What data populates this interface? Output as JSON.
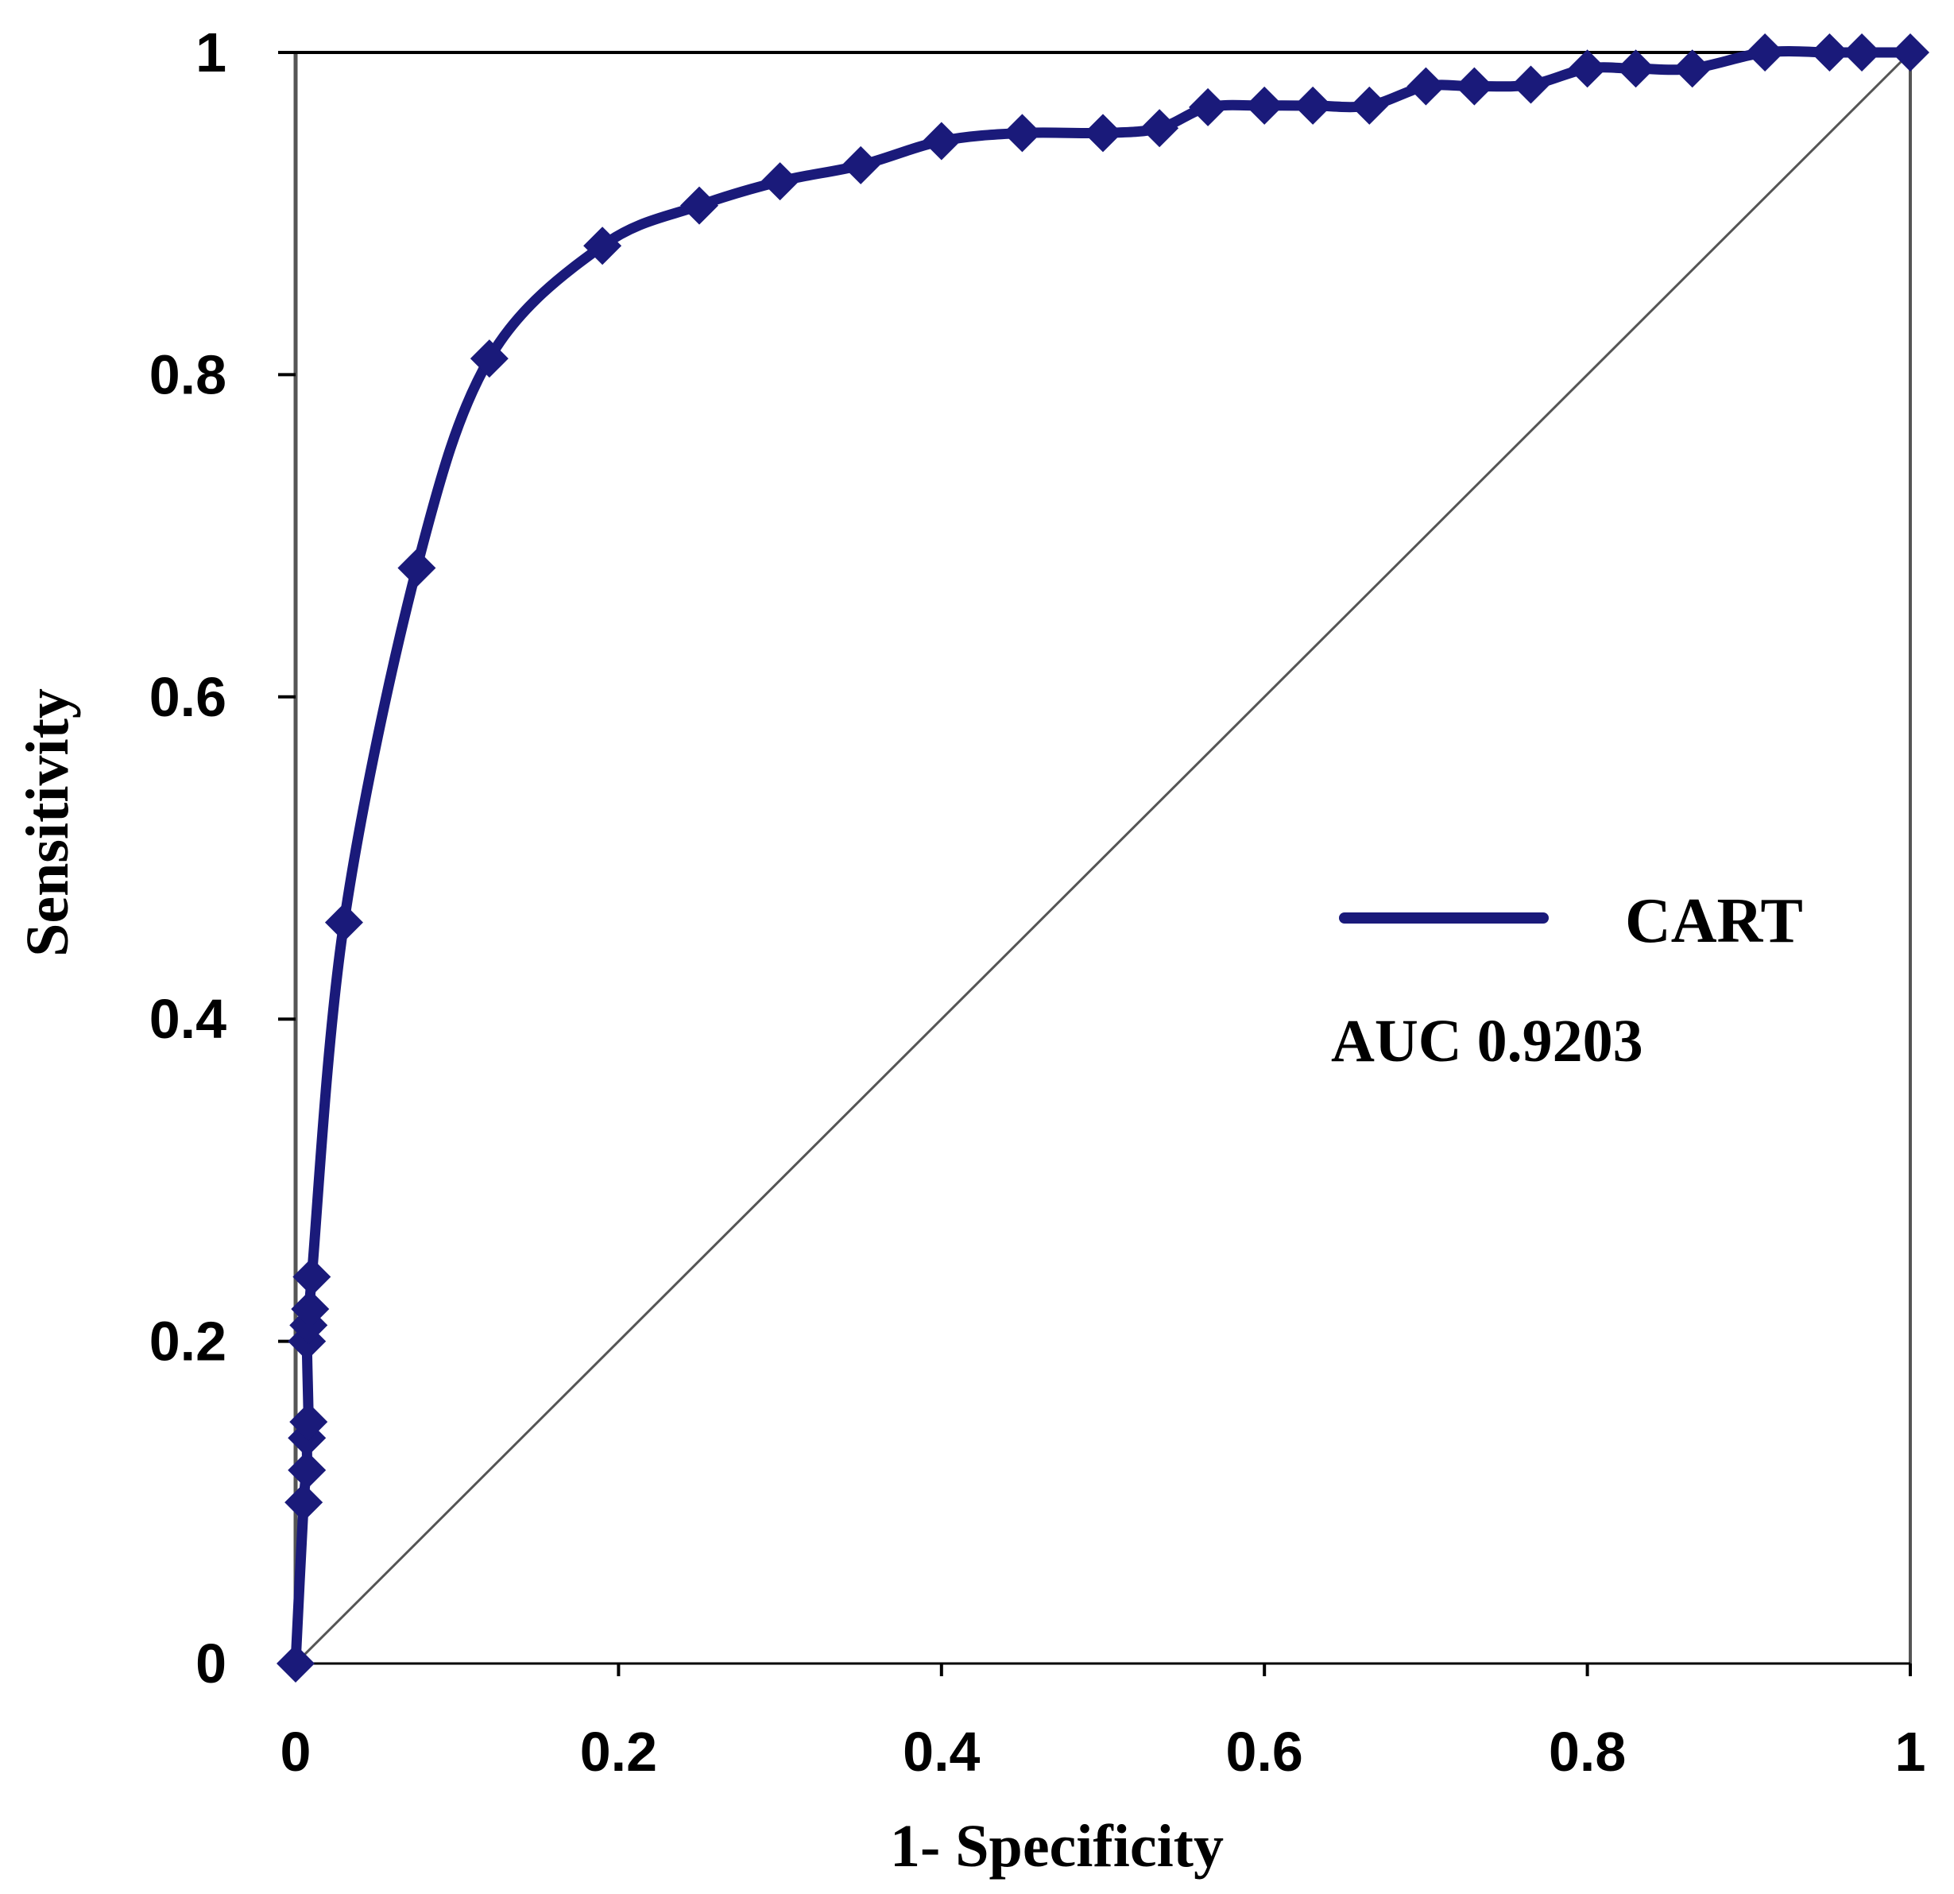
{
  "chart_data": {
    "type": "line",
    "title": "",
    "xlabel": "1-  Specificity",
    "ylabel": "Sensitivity",
    "xlim": [
      0,
      1
    ],
    "ylim": [
      0,
      1
    ],
    "x_ticks": [
      "0",
      "0.2",
      "0.4",
      "0.6",
      "0.8",
      "1"
    ],
    "y_ticks": [
      "0",
      "0.2",
      "0.4",
      "0.6",
      "0.8",
      "1"
    ],
    "grid": false,
    "legend": {
      "position": "center-right",
      "entries": [
        "CART"
      ]
    },
    "annotation": "AUC 0.9203",
    "colors": {
      "series": "#1a1a7a",
      "axes": "#000000",
      "reference": "#555555"
    },
    "series": [
      {
        "name": "CART",
        "marker": "diamond",
        "points": [
          [
            0.0,
            0.0
          ],
          [
            0.005,
            0.1
          ],
          [
            0.007,
            0.12
          ],
          [
            0.007,
            0.14
          ],
          [
            0.008,
            0.15
          ],
          [
            0.007,
            0.2
          ],
          [
            0.008,
            0.21
          ],
          [
            0.009,
            0.22
          ],
          [
            0.01,
            0.24
          ],
          [
            0.03,
            0.46
          ],
          [
            0.075,
            0.68
          ],
          [
            0.12,
            0.81
          ],
          [
            0.19,
            0.88
          ],
          [
            0.25,
            0.905
          ],
          [
            0.3,
            0.92
          ],
          [
            0.35,
            0.93
          ],
          [
            0.4,
            0.945
          ],
          [
            0.45,
            0.95
          ],
          [
            0.5,
            0.95
          ],
          [
            0.535,
            0.953
          ],
          [
            0.565,
            0.966
          ],
          [
            0.6,
            0.967
          ],
          [
            0.63,
            0.967
          ],
          [
            0.665,
            0.967
          ],
          [
            0.7,
            0.979
          ],
          [
            0.73,
            0.979
          ],
          [
            0.765,
            0.98
          ],
          [
            0.8,
            0.99
          ],
          [
            0.83,
            0.99
          ],
          [
            0.865,
            0.99
          ],
          [
            0.91,
            1.0
          ],
          [
            0.95,
            1.0
          ],
          [
            0.97,
            1.0
          ],
          [
            1.0,
            1.0
          ]
        ]
      },
      {
        "role": "reference-diagonal",
        "points": [
          [
            0,
            0
          ],
          [
            1,
            1
          ]
        ]
      }
    ]
  }
}
